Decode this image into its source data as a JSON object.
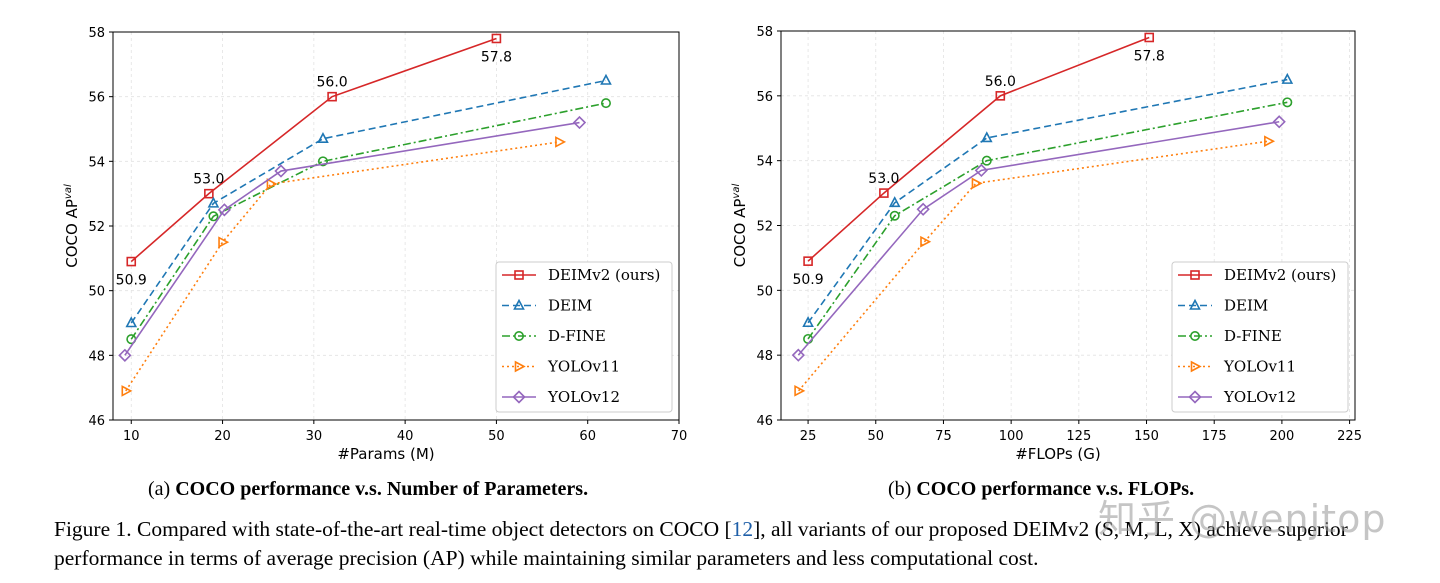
{
  "chart_data": [
    {
      "type": "line",
      "subcaption_prefix": "(a)",
      "subcaption_title": "COCO performance v.s. Number of Parameters.",
      "xlabel": "#Params (M)",
      "ylabel_main": "COCO AP",
      "ylabel_sup": "val",
      "xlim": [
        8,
        70
      ],
      "ylim": [
        46,
        58
      ],
      "xticks": [
        10,
        20,
        30,
        40,
        50,
        60,
        70
      ],
      "yticks": [
        46,
        48,
        50,
        52,
        54,
        56,
        58
      ],
      "grid": true,
      "legend_position": "lower-right",
      "series": [
        {
          "name": "DEIMv2 (ours)",
          "color": "#d62728",
          "marker": "square",
          "dash": "solid",
          "x": [
            10,
            18.5,
            32,
            50
          ],
          "y": [
            50.9,
            53.0,
            56.0,
            57.8
          ]
        },
        {
          "name": "DEIM",
          "color": "#1f77b4",
          "marker": "triangle",
          "dash": "dashed",
          "x": [
            10,
            19,
            31,
            62
          ],
          "y": [
            49.0,
            52.7,
            54.7,
            56.5
          ]
        },
        {
          "name": "D-FINE",
          "color": "#2ca02c",
          "marker": "circle",
          "dash": "dashdot",
          "x": [
            10,
            19,
            31,
            62
          ],
          "y": [
            48.5,
            52.3,
            54.0,
            55.8
          ]
        },
        {
          "name": "YOLOv11",
          "color": "#ff7f0e",
          "marker": "triangle-right",
          "dash": "dotted",
          "x": [
            9.4,
            20,
            25.3,
            56.9
          ],
          "y": [
            46.9,
            51.5,
            53.3,
            54.6
          ]
        },
        {
          "name": "YOLOv12",
          "color": "#9467bd",
          "marker": "diamond",
          "dash": "solid",
          "x": [
            9.3,
            20.2,
            26.4,
            59.1
          ],
          "y": [
            48.0,
            52.5,
            53.7,
            55.2
          ]
        }
      ],
      "annotations": [
        {
          "text": "50.9",
          "x": 10,
          "y": 50.9,
          "pos": "below"
        },
        {
          "text": "53.0",
          "x": 18.5,
          "y": 53.0,
          "pos": "above"
        },
        {
          "text": "56.0",
          "x": 32,
          "y": 56.0,
          "pos": "above"
        },
        {
          "text": "57.8",
          "x": 50,
          "y": 57.8,
          "pos": "below"
        }
      ]
    },
    {
      "type": "line",
      "subcaption_prefix": "(b)",
      "subcaption_title": "COCO performance v.s. FLOPs.",
      "xlabel": "#FLOPs (G)",
      "ylabel_main": "COCO AP",
      "ylabel_sup": "val",
      "xlim": [
        15,
        227
      ],
      "ylim": [
        46,
        58
      ],
      "xticks": [
        25,
        50,
        75,
        100,
        125,
        150,
        175,
        200,
        225
      ],
      "yticks": [
        46,
        48,
        50,
        52,
        54,
        56,
        58
      ],
      "grid": true,
      "legend_position": "lower-right",
      "series": [
        {
          "name": "DEIMv2 (ours)",
          "color": "#d62728",
          "marker": "square",
          "dash": "solid",
          "x": [
            25,
            53,
            96,
            151
          ],
          "y": [
            50.9,
            53.0,
            56.0,
            57.8
          ]
        },
        {
          "name": "DEIM",
          "color": "#1f77b4",
          "marker": "triangle",
          "dash": "dashed",
          "x": [
            25,
            57,
            91,
            202
          ],
          "y": [
            49.0,
            52.7,
            54.7,
            56.5
          ]
        },
        {
          "name": "D-FINE",
          "color": "#2ca02c",
          "marker": "circle",
          "dash": "dashdot",
          "x": [
            25,
            57,
            91,
            202
          ],
          "y": [
            48.5,
            52.3,
            54.0,
            55.8
          ]
        },
        {
          "name": "YOLOv11",
          "color": "#ff7f0e",
          "marker": "triangle-right",
          "dash": "dotted",
          "x": [
            21.5,
            68,
            87,
            195
          ],
          "y": [
            46.9,
            51.5,
            53.3,
            54.6
          ]
        },
        {
          "name": "YOLOv12",
          "color": "#9467bd",
          "marker": "diamond",
          "dash": "solid",
          "x": [
            21.4,
            67.5,
            89,
            199
          ],
          "y": [
            48.0,
            52.5,
            53.7,
            55.2
          ]
        }
      ],
      "annotations": [
        {
          "text": "50.9",
          "x": 25,
          "y": 50.9,
          "pos": "below"
        },
        {
          "text": "53.0",
          "x": 53,
          "y": 53.0,
          "pos": "above"
        },
        {
          "text": "56.0",
          "x": 96,
          "y": 56.0,
          "pos": "above"
        },
        {
          "text": "57.8",
          "x": 151,
          "y": 57.8,
          "pos": "below"
        }
      ]
    }
  ],
  "caption": {
    "prefix": "Figure 1.  Compared with state-of-the-art real-time object detectors on COCO [",
    "ref": "12",
    "suffix": "], all variants of our proposed DEIMv2 (S, M, L, X) achieve superior performance in terms of average precision (AP) while maintaining similar parameters and less computational cost."
  },
  "watermark": "知乎 @wenjtop"
}
